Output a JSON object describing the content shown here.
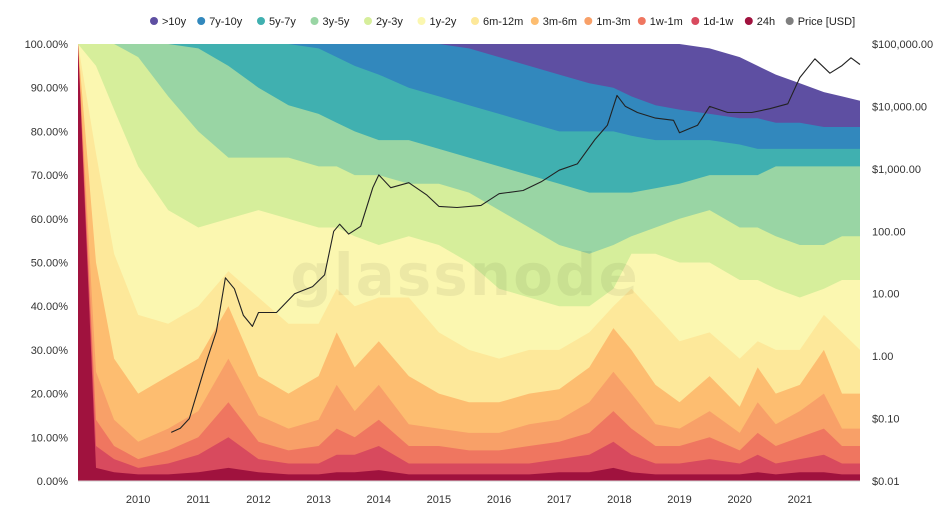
{
  "watermark": "glassnode",
  "chart_data": {
    "type": "area",
    "stacked": true,
    "legend_position": "top",
    "legend": [
      {
        "name": ">10y",
        "color": "#5e4fa2"
      },
      {
        "name": "7y-10y",
        "color": "#3288bd"
      },
      {
        "name": "5y-7y",
        "color": "#40b0b0"
      },
      {
        "name": "3y-5y",
        "color": "#99d5a4"
      },
      {
        "name": "2y-3y",
        "color": "#d6ee9b"
      },
      {
        "name": "1y-2y",
        "color": "#fbf7b0"
      },
      {
        "name": "6m-12m",
        "color": "#fde89a"
      },
      {
        "name": "3m-6m",
        "color": "#fdbd70"
      },
      {
        "name": "1m-3m",
        "color": "#f8a068"
      },
      {
        "name": "1w-1m",
        "color": "#ef7660"
      },
      {
        "name": "1d-1w",
        "color": "#d84a5e"
      },
      {
        "name": "24h",
        "color": "#a0123e"
      },
      {
        "name": "Price [USD]",
        "color": "#7f7f7f"
      }
    ],
    "x_ticks": [
      "2010",
      "2011",
      "2012",
      "2013",
      "2014",
      "2015",
      "2016",
      "2017",
      "2018",
      "2019",
      "2020",
      "2021"
    ],
    "y_left_ticks": [
      "0.00%",
      "10.00%",
      "20.00%",
      "30.00%",
      "40.00%",
      "50.00%",
      "60.00%",
      "70.00%",
      "80.00%",
      "90.00%",
      "100.00%"
    ],
    "y_left_range": [
      0,
      100
    ],
    "y_right_ticks": [
      "$0.01",
      "$0.10",
      "1.00",
      "10.00",
      "100.00",
      "$1,000.00",
      "$10,000.00",
      "$100,000.00"
    ],
    "y_right_scale": "log",
    "y_right_range": [
      0.01,
      100000
    ],
    "x_range": [
      2009.0,
      2022.0
    ],
    "bands_note": "cumulative upper boundary (%) per band, from bottom (24h) to top (>10y)",
    "band_boundaries": {
      "x": [
        2009.0,
        2009.3,
        2009.6,
        2010.0,
        2010.5,
        2011.0,
        2011.5,
        2012.0,
        2012.5,
        2013.0,
        2013.3,
        2013.6,
        2014.0,
        2014.5,
        2015.0,
        2015.5,
        2016.0,
        2016.5,
        2017.0,
        2017.5,
        2017.9,
        2018.2,
        2018.6,
        2019.0,
        2019.5,
        2020.0,
        2020.3,
        2020.6,
        2021.0,
        2021.4,
        2021.7,
        2022.0
      ],
      "24h": [
        100,
        3,
        2,
        1.5,
        1.5,
        2,
        3,
        2,
        1.5,
        1.5,
        2,
        2,
        2.5,
        1.5,
        1.5,
        1.5,
        1.5,
        1.5,
        2,
        2,
        3,
        2,
        1.5,
        1.5,
        1.5,
        1.5,
        2,
        1.5,
        2,
        2,
        1.5,
        1.5
      ],
      "1d-1w": [
        100,
        8,
        5,
        3,
        4,
        6,
        10,
        5,
        4,
        4,
        6,
        6,
        8,
        4,
        4,
        4,
        4,
        4,
        5,
        6,
        9,
        6,
        4,
        4,
        5,
        4,
        6,
        4,
        5,
        6,
        4,
        4
      ],
      "1w-1m": [
        100,
        14,
        8,
        5,
        7,
        10,
        18,
        9,
        7,
        8,
        12,
        10,
        14,
        8,
        8,
        7,
        7,
        8,
        9,
        11,
        16,
        12,
        8,
        8,
        10,
        7,
        11,
        8,
        10,
        12,
        8,
        8
      ],
      "1m-3m": [
        100,
        25,
        14,
        9,
        12,
        16,
        28,
        15,
        12,
        14,
        22,
        16,
        22,
        13,
        12,
        11,
        11,
        13,
        14,
        18,
        25,
        20,
        13,
        12,
        16,
        11,
        18,
        13,
        16,
        20,
        12,
        12
      ],
      "3m-6m": [
        100,
        50,
        28,
        20,
        24,
        28,
        40,
        24,
        20,
        24,
        34,
        26,
        32,
        24,
        20,
        18,
        18,
        20,
        21,
        26,
        35,
        30,
        22,
        18,
        24,
        17,
        26,
        20,
        22,
        30,
        20,
        20
      ],
      "6m-12m": [
        100,
        75,
        52,
        38,
        36,
        40,
        48,
        42,
        36,
        36,
        44,
        40,
        42,
        42,
        34,
        30,
        28,
        30,
        30,
        34,
        40,
        44,
        38,
        32,
        34,
        28,
        32,
        30,
        30,
        38,
        34,
        30
      ],
      "1y-2y": [
        100,
        95,
        85,
        72,
        62,
        58,
        60,
        62,
        60,
        58,
        58,
        56,
        54,
        56,
        54,
        50,
        44,
        42,
        40,
        40,
        44,
        52,
        52,
        50,
        50,
        46,
        46,
        44,
        42,
        44,
        46,
        46
      ],
      "2y-3y": [
        100,
        100,
        100,
        97,
        88,
        80,
        74,
        74,
        74,
        72,
        72,
        70,
        70,
        68,
        68,
        66,
        62,
        58,
        54,
        52,
        54,
        56,
        58,
        60,
        62,
        58,
        58,
        56,
        54,
        54,
        56,
        56
      ],
      "3y-5y": [
        100,
        100,
        100,
        100,
        100,
        99,
        95,
        90,
        86,
        84,
        82,
        80,
        78,
        78,
        76,
        74,
        72,
        70,
        68,
        66,
        66,
        66,
        67,
        68,
        70,
        70,
        70,
        72,
        72,
        72,
        72,
        72
      ],
      "5y-7y": [
        100,
        100,
        100,
        100,
        100,
        100,
        100,
        100,
        100,
        99,
        97,
        95,
        93,
        90,
        88,
        86,
        84,
        82,
        80,
        80,
        80,
        79,
        78,
        78,
        78,
        77,
        76,
        76,
        76,
        76,
        76,
        76
      ],
      "7y-10y": [
        100,
        100,
        100,
        100,
        100,
        100,
        100,
        100,
        100,
        100,
        100,
        100,
        100,
        100,
        100,
        99,
        97,
        95,
        93,
        91,
        90,
        88,
        86,
        85,
        84,
        83,
        83,
        82,
        82,
        81,
        81,
        81
      ],
      ">10y": [
        100,
        100,
        100,
        100,
        100,
        100,
        100,
        100,
        100,
        100,
        100,
        100,
        100,
        100,
        100,
        100,
        100,
        100,
        100,
        100,
        100,
        100,
        100,
        100,
        99,
        97,
        95,
        93,
        91,
        89,
        88,
        87
      ]
    },
    "price_usd": {
      "x": [
        2010.55,
        2010.7,
        2010.85,
        2011.0,
        2011.15,
        2011.3,
        2011.45,
        2011.6,
        2011.75,
        2011.9,
        2012.0,
        2012.3,
        2012.6,
        2012.9,
        2013.1,
        2013.25,
        2013.35,
        2013.5,
        2013.7,
        2013.9,
        2014.0,
        2014.2,
        2014.5,
        2014.8,
        2015.0,
        2015.3,
        2015.7,
        2016.0,
        2016.4,
        2016.7,
        2017.0,
        2017.3,
        2017.6,
        2017.8,
        2017.96,
        2018.1,
        2018.3,
        2018.6,
        2018.9,
        2019.0,
        2019.3,
        2019.5,
        2019.8,
        2020.2,
        2020.5,
        2020.8,
        2021.0,
        2021.25,
        2021.5,
        2021.7,
        2021.85,
        2022.0
      ],
      "y": [
        0.06,
        0.07,
        0.1,
        0.3,
        0.9,
        2.5,
        18,
        12,
        4.5,
        3,
        5,
        5,
        10,
        13,
        20,
        100,
        130,
        90,
        120,
        500,
        800,
        500,
        600,
        380,
        250,
        240,
        260,
        400,
        450,
        620,
        950,
        1200,
        3000,
        5000,
        15000,
        10000,
        8000,
        6500,
        6000,
        3800,
        5000,
        10000,
        8000,
        8000,
        9200,
        11000,
        29000,
        58000,
        34000,
        45000,
        60000,
        47000
      ]
    }
  }
}
